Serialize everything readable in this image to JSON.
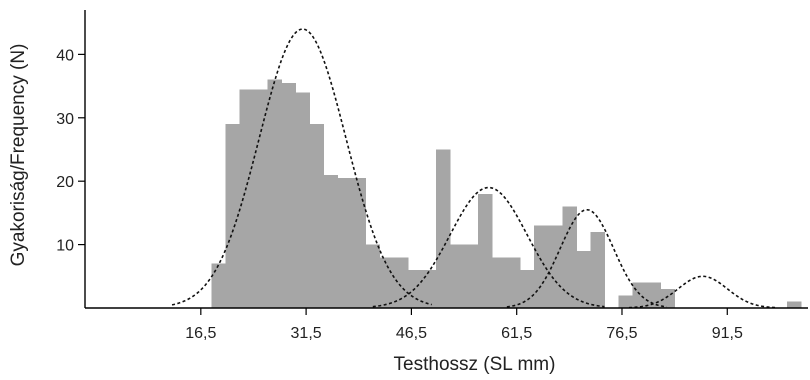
{
  "chart_data": {
    "type": "bar",
    "title": "",
    "xlabel": "Testhossz (SL mm)",
    "ylabel": "Gyakoriság/Frequency (N)",
    "xlim": [
      0,
      103
    ],
    "ylim": [
      0,
      47
    ],
    "x_ticks": [
      {
        "value": 16.5,
        "label": "16,5"
      },
      {
        "value": 31.5,
        "label": "31,5"
      },
      {
        "value": 46.5,
        "label": "46,5"
      },
      {
        "value": 61.5,
        "label": "61,5"
      },
      {
        "value": 76.5,
        "label": "76,5"
      },
      {
        "value": 91.5,
        "label": "91,5"
      }
    ],
    "y_ticks": [
      {
        "value": 10,
        "label": "10"
      },
      {
        "value": 20,
        "label": "20"
      },
      {
        "value": 30,
        "label": "30"
      },
      {
        "value": 40,
        "label": "40"
      }
    ],
    "bin_width": 2,
    "bins": [
      {
        "x": 18,
        "value": 7
      },
      {
        "x": 20,
        "value": 29
      },
      {
        "x": 22,
        "value": 34.5
      },
      {
        "x": 24,
        "value": 34.5
      },
      {
        "x": 26,
        "value": 36
      },
      {
        "x": 28,
        "value": 35.5
      },
      {
        "x": 30,
        "value": 34
      },
      {
        "x": 32,
        "value": 29
      },
      {
        "x": 34,
        "value": 21
      },
      {
        "x": 36,
        "value": 20.5
      },
      {
        "x": 38,
        "value": 20.5
      },
      {
        "x": 40,
        "value": 10
      },
      {
        "x": 42,
        "value": 8
      },
      {
        "x": 44,
        "value": 8
      },
      {
        "x": 46,
        "value": 6
      },
      {
        "x": 48,
        "value": 6
      },
      {
        "x": 50,
        "value": 25
      },
      {
        "x": 52,
        "value": 10
      },
      {
        "x": 54,
        "value": 10
      },
      {
        "x": 56,
        "value": 18
      },
      {
        "x": 58,
        "value": 8
      },
      {
        "x": 60,
        "value": 8
      },
      {
        "x": 62,
        "value": 6
      },
      {
        "x": 64,
        "value": 13
      },
      {
        "x": 66,
        "value": 13
      },
      {
        "x": 68,
        "value": 16
      },
      {
        "x": 70,
        "value": 9
      },
      {
        "x": 72,
        "value": 12
      },
      {
        "x": 74,
        "value": 0
      },
      {
        "x": 76,
        "value": 2
      },
      {
        "x": 78,
        "value": 4
      },
      {
        "x": 80,
        "value": 4
      },
      {
        "x": 82,
        "value": 3
      },
      {
        "x": 100,
        "value": 1
      }
    ],
    "fitted_curves": [
      {
        "mean": 31,
        "sd": 6.2,
        "peak": 44
      },
      {
        "mean": 57.5,
        "sd": 5.5,
        "peak": 19
      },
      {
        "mean": 71.5,
        "sd": 3.8,
        "peak": 15.5
      },
      {
        "mean": 88,
        "sd": 3.5,
        "peak": 5
      }
    ],
    "bar_color": "#a6a6a6",
    "curve_color": "#111111",
    "grid": false,
    "legend": "none"
  }
}
